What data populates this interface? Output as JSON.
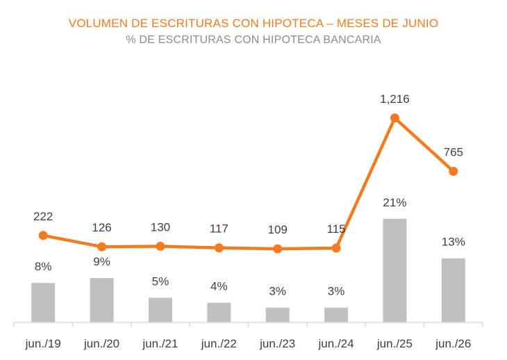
{
  "header": {
    "title": "VOLUMEN DE ESCRITURAS CON HIPOTECA – MESES DE JUNIO",
    "subtitle": "% DE ESCRITURAS CON HIPOTECA BANCARIA"
  },
  "chart_data": {
    "type": "bar",
    "title": "VOLUMEN DE ESCRITURAS CON HIPOTECA – MESES DE JUNIO",
    "subtitle": "% DE ESCRITURAS CON HIPOTECA BANCARIA",
    "categories": [
      "jun./19",
      "jun./20",
      "jun./21",
      "jun./22",
      "jun./23",
      "jun./24",
      "jun./25",
      "jun./26"
    ],
    "series": [
      {
        "type": "bar",
        "values": [
          8,
          9,
          5,
          4,
          3,
          3,
          21,
          13
        ],
        "labels": [
          "8%",
          "9%",
          "5%",
          "4%",
          "3%",
          "3%",
          "21%",
          "13%"
        ],
        "color": "#c0c0c0"
      },
      {
        "type": "line",
        "values": [
          222,
          126,
          130,
          117,
          109,
          115,
          1216,
          765
        ],
        "labels": [
          "222",
          "126",
          "130",
          "117",
          "109",
          "115",
          "1,216",
          "765"
        ],
        "color": "#f47b20"
      }
    ],
    "grid": false,
    "legend": "none"
  }
}
